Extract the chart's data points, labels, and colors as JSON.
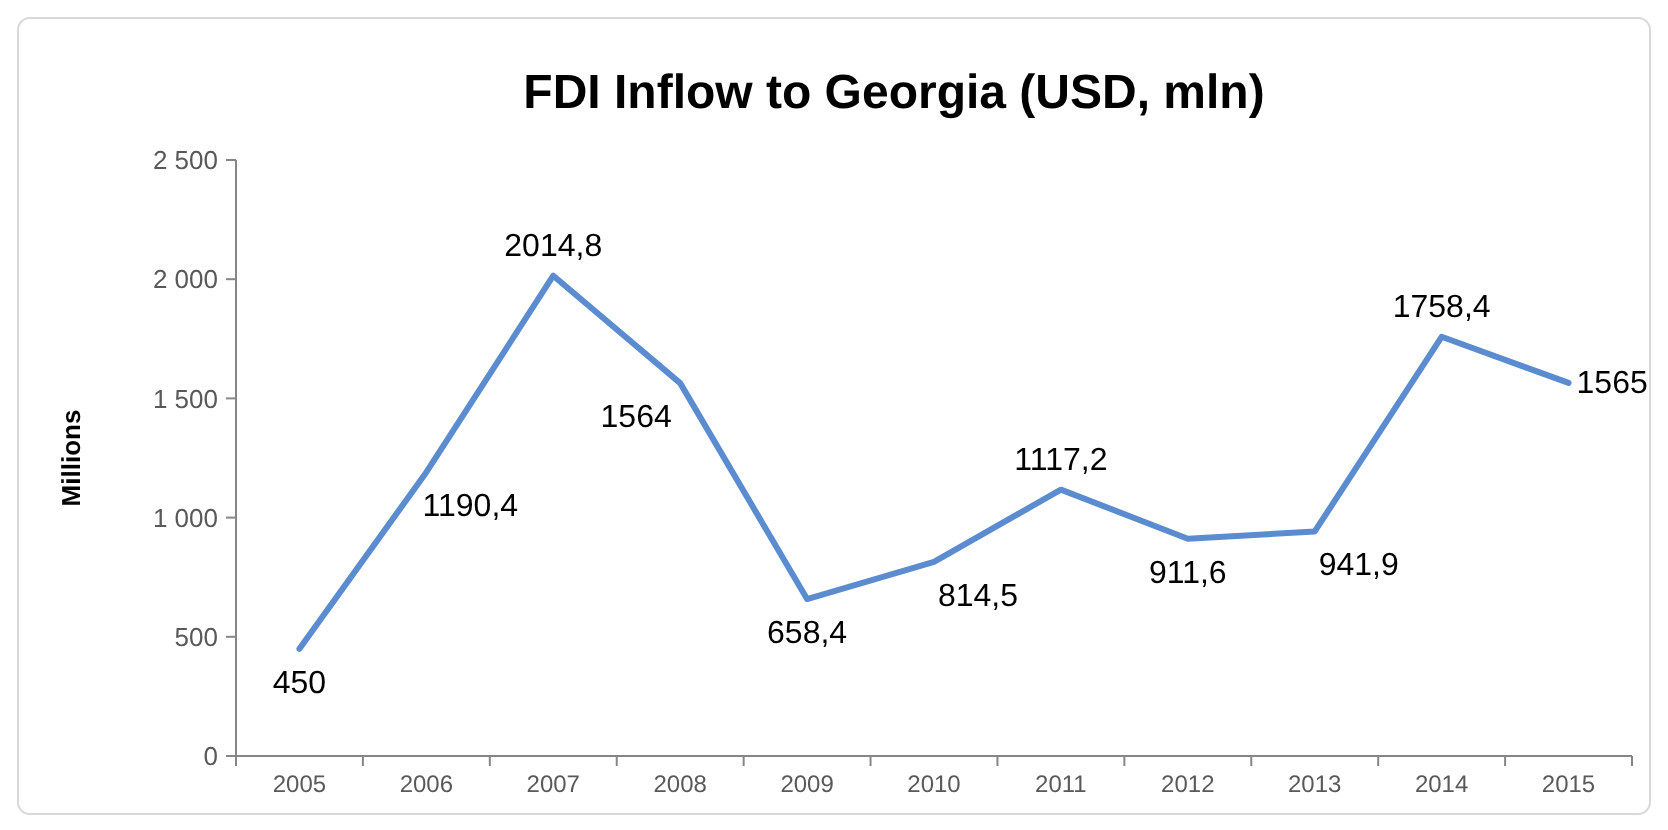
{
  "chart_data": {
    "type": "line",
    "title": "FDI Inflow to Georgia (USD, mln)",
    "ylabel": "Millions",
    "categories": [
      "2005",
      "2006",
      "2007",
      "2008",
      "2009",
      "2010",
      "2011",
      "2012",
      "2013",
      "2014",
      "2015"
    ],
    "series": [
      {
        "color": "#5b8ccf",
        "values": [
          450,
          1190.4,
          2014.8,
          1564,
          658.4,
          814.5,
          1117.2,
          911.6,
          941.9,
          1758.4,
          1565
        ],
        "value_labels": [
          "450",
          "1190,4",
          "2014,8",
          "1564",
          "658,4",
          "814,5",
          "1117,2",
          "911,6",
          "941,9",
          "1758,4",
          "1565"
        ]
      }
    ],
    "ylim": [
      0,
      2500
    ],
    "yticks": [
      0,
      {
        "value": 500,
        "label": "500"
      },
      {
        "value": 1000,
        "label": "1 000"
      },
      {
        "value": 1500,
        "label": "1 500"
      },
      {
        "value": 2000,
        "label": "2 000"
      },
      {
        "value": 2500,
        "label": "2 500"
      }
    ],
    "grid": false,
    "marker": "none",
    "line_style": "solid"
  }
}
